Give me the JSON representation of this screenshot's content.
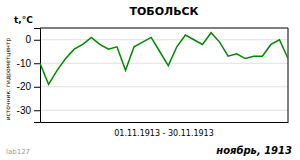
{
  "chart_data": {
    "type": "line",
    "title": "ТОБОЛЬСК",
    "ylabel": "t,°C",
    "xlabel": "01.11.1913 - 30.11.1913",
    "annotations": [
      "ноябрь, 1913",
      "источник: гидрометцентр",
      "lab127"
    ],
    "x": [
      1,
      2,
      3,
      4,
      5,
      6,
      7,
      8,
      9,
      10,
      11,
      12,
      13,
      14,
      15,
      16,
      17,
      18,
      19,
      20,
      21,
      22,
      23,
      24,
      25,
      26,
      27,
      28,
      29,
      30
    ],
    "values": [
      -10,
      -19,
      -13,
      -8,
      -4,
      -2,
      1,
      -2,
      -4,
      -3,
      -13,
      -3,
      -1,
      1,
      -5,
      -11,
      -3,
      2,
      0,
      -2,
      3,
      -1,
      -7,
      -6,
      -8,
      -7,
      -7,
      -2,
      0,
      -8
    ],
    "color": "#008800",
    "xlim": [
      1,
      30
    ],
    "ylim": [
      -35,
      5
    ],
    "yticks": [
      0,
      -10,
      -20,
      -30
    ],
    "grid": true,
    "tick_labels": "y"
  }
}
